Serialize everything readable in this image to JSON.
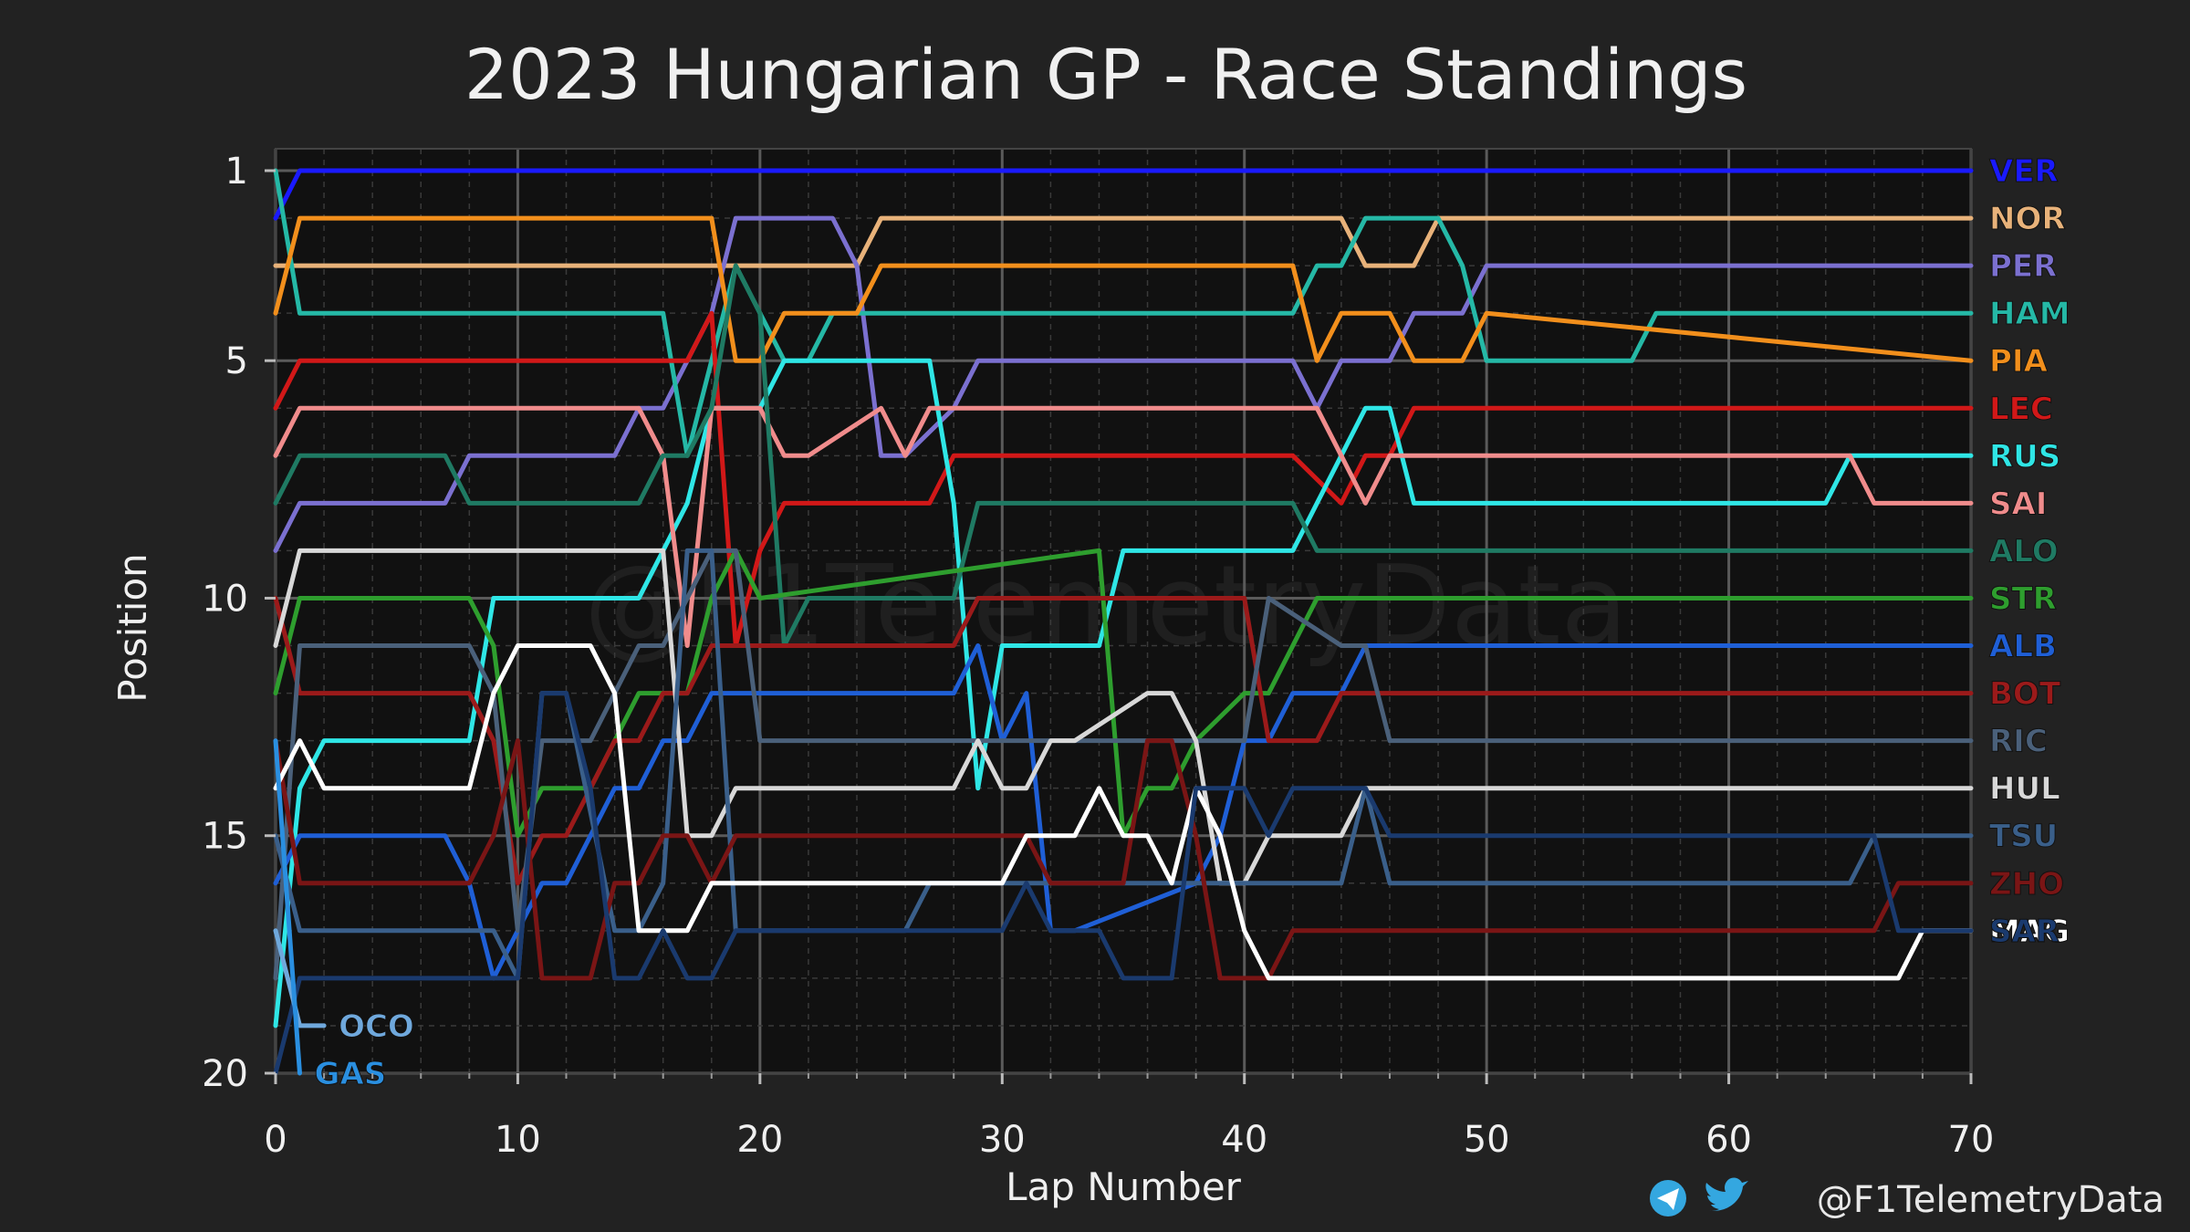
{
  "chart_data": {
    "type": "line",
    "title": "2023 Hungarian GP - Race Standings",
    "xlabel": "Lap Number",
    "ylabel": "Position",
    "xlim": [
      0,
      70
    ],
    "ylim": [
      20,
      1
    ],
    "y_inverted": true,
    "x_ticks": [
      0,
      10,
      20,
      30,
      40,
      50,
      60,
      70
    ],
    "y_ticks": [
      1,
      5,
      10,
      15,
      20
    ],
    "grid": true,
    "legend": "driver labels at line ends (right)",
    "series": [
      {
        "name": "VER",
        "color": "#1a1aff",
        "x": [
          0,
          1,
          70
        ],
        "y": [
          2,
          1,
          1
        ]
      },
      {
        "name": "NOR",
        "color": "#e8b27a",
        "x": [
          0,
          1,
          18,
          19,
          24,
          25,
          44,
          45,
          47,
          48,
          70
        ],
        "y": [
          3,
          3,
          3,
          3,
          3,
          2,
          2,
          3,
          3,
          2,
          2
        ]
      },
      {
        "name": "PER",
        "color": "#7b70d0",
        "x": [
          0,
          1,
          7,
          8,
          14,
          15,
          16,
          17,
          18,
          19,
          23,
          24,
          25,
          26,
          28,
          29,
          42,
          43,
          44,
          46,
          47,
          49,
          50,
          70
        ],
        "y": [
          9,
          8,
          8,
          7,
          7,
          6,
          6,
          5,
          4,
          2,
          2,
          3,
          7,
          7,
          6,
          5,
          5,
          6,
          5,
          5,
          4,
          4,
          3,
          3
        ]
      },
      {
        "name": "HAM",
        "color": "#25b8a6",
        "x": [
          0,
          1,
          16,
          17,
          18,
          19,
          20,
          21,
          22,
          23,
          24,
          25,
          42,
          43,
          44,
          45,
          48,
          49,
          50,
          56,
          57,
          70
        ],
        "y": [
          1,
          4,
          4,
          7,
          5,
          3,
          4,
          5,
          5,
          4,
          4,
          4,
          4,
          3,
          3,
          2,
          2,
          3,
          5,
          5,
          4,
          4
        ]
      },
      {
        "name": "PIA",
        "color": "#f28f1c",
        "x": [
          0,
          1,
          17,
          18,
          19,
          20,
          21,
          22,
          24,
          25,
          42,
          43,
          44,
          46,
          47,
          49,
          50,
          70
        ],
        "y": [
          4,
          2,
          2,
          2,
          5,
          5,
          4,
          4,
          4,
          3,
          3,
          5,
          4,
          4,
          5,
          5,
          4,
          5
        ]
      },
      {
        "name": "LEC",
        "color": "#d11818",
        "x": [
          0,
          1,
          17,
          18,
          19,
          20,
          21,
          27,
          28,
          41,
          42,
          44,
          45,
          46,
          47,
          70
        ],
        "y": [
          6,
          5,
          5,
          4,
          11,
          9,
          8,
          8,
          7,
          7,
          7,
          8,
          7,
          7,
          6,
          6
        ]
      },
      {
        "name": "RUS",
        "color": "#2fe6e6",
        "x": [
          0,
          1,
          2,
          8,
          9,
          15,
          16,
          17,
          18,
          20,
          21,
          23,
          24,
          27,
          28,
          29,
          30,
          31,
          32,
          34,
          35,
          42,
          43,
          45,
          46,
          47,
          64,
          65,
          70
        ],
        "y": [
          19,
          14,
          13,
          13,
          10,
          10,
          9,
          8,
          6,
          6,
          5,
          5,
          5,
          5,
          8,
          14,
          11,
          11,
          11,
          11,
          9,
          9,
          8,
          6,
          6,
          8,
          8,
          7,
          7
        ]
      },
      {
        "name": "SAI",
        "color": "#f08c8c",
        "x": [
          0,
          1,
          15,
          16,
          17,
          18,
          19,
          20,
          21,
          22,
          25,
          26,
          27,
          28,
          42,
          43,
          44,
          45,
          46,
          65,
          66,
          70
        ],
        "y": [
          7,
          6,
          6,
          7,
          11,
          6,
          6,
          6,
          7,
          7,
          6,
          7,
          6,
          6,
          6,
          6,
          7,
          8,
          7,
          7,
          8,
          8
        ]
      },
      {
        "name": "ALO",
        "color": "#1f7a63",
        "x": [
          0,
          1,
          7,
          8,
          15,
          16,
          17,
          18,
          19,
          20,
          21,
          22,
          28,
          29,
          42,
          43,
          70
        ],
        "y": [
          8,
          7,
          7,
          8,
          8,
          7,
          7,
          6,
          3,
          4,
          11,
          10,
          10,
          8,
          8,
          9,
          9
        ]
      },
      {
        "name": "STR",
        "color": "#2e9e2e",
        "x": [
          0,
          1,
          8,
          9,
          10,
          11,
          13,
          14,
          15,
          17,
          18,
          19,
          20,
          34,
          35,
          36,
          37,
          38,
          40,
          41,
          42,
          43,
          70
        ],
        "y": [
          12,
          10,
          10,
          11,
          15,
          14,
          14,
          13,
          12,
          12,
          10,
          9,
          10,
          9,
          15,
          14,
          14,
          13,
          12,
          12,
          11,
          10,
          10
        ]
      },
      {
        "name": "ALB",
        "color": "#1f5fd6",
        "x": [
          0,
          1,
          7,
          8,
          9,
          10,
          11,
          12,
          13,
          14,
          15,
          16,
          17,
          18,
          19,
          20,
          28,
          29,
          30,
          31,
          32,
          33,
          38,
          39,
          40,
          41,
          42,
          44,
          45,
          46,
          70
        ],
        "y": [
          16,
          15,
          15,
          16,
          18,
          17,
          16,
          16,
          15,
          14,
          14,
          13,
          13,
          12,
          12,
          12,
          12,
          11,
          13,
          12,
          17,
          17,
          16,
          15,
          13,
          13,
          12,
          12,
          11,
          11,
          11
        ]
      },
      {
        "name": "BOT",
        "color": "#9b1a1a",
        "x": [
          0,
          1,
          8,
          9,
          10,
          11,
          12,
          13,
          14,
          15,
          16,
          17,
          18,
          19,
          20,
          28,
          29,
          40,
          41,
          43,
          44,
          45,
          46,
          70
        ],
        "y": [
          10,
          12,
          12,
          13,
          16,
          15,
          15,
          14,
          13,
          13,
          12,
          12,
          11,
          11,
          11,
          11,
          10,
          10,
          13,
          13,
          12,
          12,
          12,
          12
        ]
      },
      {
        "name": "RIC",
        "color": "#4a607a",
        "x": [
          0,
          1,
          8,
          9,
          10,
          11,
          12,
          13,
          14,
          15,
          16,
          17,
          18,
          19,
          20,
          40,
          41,
          44,
          45,
          46,
          70
        ],
        "y": [
          18,
          11,
          11,
          12,
          17,
          13,
          13,
          13,
          12,
          11,
          11,
          10,
          9,
          9,
          13,
          13,
          10,
          11,
          11,
          13,
          13
        ]
      },
      {
        "name": "HUL",
        "color": "#d8d8d8",
        "x": [
          0,
          1,
          15,
          16,
          17,
          18,
          19,
          20,
          21,
          27,
          28,
          29,
          30,
          31,
          32,
          33,
          36,
          37,
          38,
          39,
          40,
          41,
          44,
          45,
          70
        ],
        "y": [
          11,
          9,
          9,
          9,
          15,
          15,
          14,
          14,
          14,
          14,
          14,
          13,
          14,
          14,
          13,
          13,
          12,
          12,
          13,
          16,
          16,
          15,
          15,
          14,
          14
        ]
      },
      {
        "name": "TSU",
        "color": "#3a5f8a",
        "x": [
          0,
          1,
          9,
          10,
          11,
          12,
          14,
          15,
          16,
          17,
          18,
          19,
          26,
          27,
          40,
          41,
          44,
          45,
          46,
          65,
          66,
          70
        ],
        "y": [
          15,
          17,
          17,
          18,
          12,
          12,
          17,
          17,
          16,
          9,
          9,
          17,
          17,
          16,
          16,
          16,
          16,
          14,
          16,
          16,
          15,
          15
        ]
      },
      {
        "name": "ZHO",
        "color": "#7a1515",
        "x": [
          0,
          1,
          8,
          9,
          10,
          11,
          12,
          13,
          14,
          15,
          16,
          17,
          18,
          19,
          20,
          31,
          32,
          35,
          36,
          37,
          38,
          39,
          40,
          41,
          42,
          43,
          66,
          67,
          70
        ],
        "y": [
          13,
          16,
          16,
          15,
          13,
          18,
          18,
          18,
          16,
          16,
          15,
          15,
          16,
          15,
          15,
          15,
          16,
          16,
          13,
          13,
          15,
          18,
          18,
          18,
          17,
          17,
          17,
          16,
          16
        ]
      },
      {
        "name": "MAG",
        "color": "#ffffff",
        "x": [
          0,
          1,
          2,
          8,
          9,
          10,
          11,
          12,
          13,
          14,
          15,
          16,
          17,
          18,
          19,
          30,
          31,
          32,
          33,
          34,
          35,
          36,
          37,
          38,
          39,
          40,
          41,
          42,
          43,
          67,
          68,
          70
        ],
        "y": [
          14,
          13,
          14,
          14,
          12,
          11,
          11,
          11,
          11,
          12,
          17,
          17,
          17,
          16,
          16,
          16,
          15,
          15,
          15,
          14,
          15,
          15,
          16,
          14,
          15,
          17,
          18,
          18,
          18,
          18,
          17,
          17
        ]
      },
      {
        "name": "SAR",
        "color": "#1a3a6e",
        "x": [
          0,
          1,
          9,
          10,
          11,
          12,
          13,
          14,
          15,
          16,
          17,
          18,
          19,
          30,
          31,
          32,
          34,
          35,
          36,
          37,
          38,
          39,
          40,
          41,
          42,
          45,
          46,
          65,
          66,
          67,
          70
        ],
        "y": [
          20,
          18,
          18,
          18,
          12,
          12,
          14,
          18,
          18,
          17,
          18,
          18,
          17,
          17,
          16,
          17,
          17,
          18,
          18,
          18,
          14,
          14,
          14,
          15,
          14,
          14,
          15,
          15,
          15,
          17,
          17
        ]
      },
      {
        "name": "OCO",
        "color": "#6fa8dc",
        "x": [
          0,
          1,
          2
        ],
        "y": [
          17,
          19,
          19
        ]
      },
      {
        "name": "GAS",
        "color": "#2a8fe0",
        "x": [
          0,
          1
        ],
        "y": [
          13,
          20
        ]
      }
    ]
  },
  "watermark": "@F1TelemetryData",
  "footer": {
    "credit": "@F1TelemetryData",
    "icons": [
      "telegram-icon",
      "twitter-icon"
    ]
  }
}
